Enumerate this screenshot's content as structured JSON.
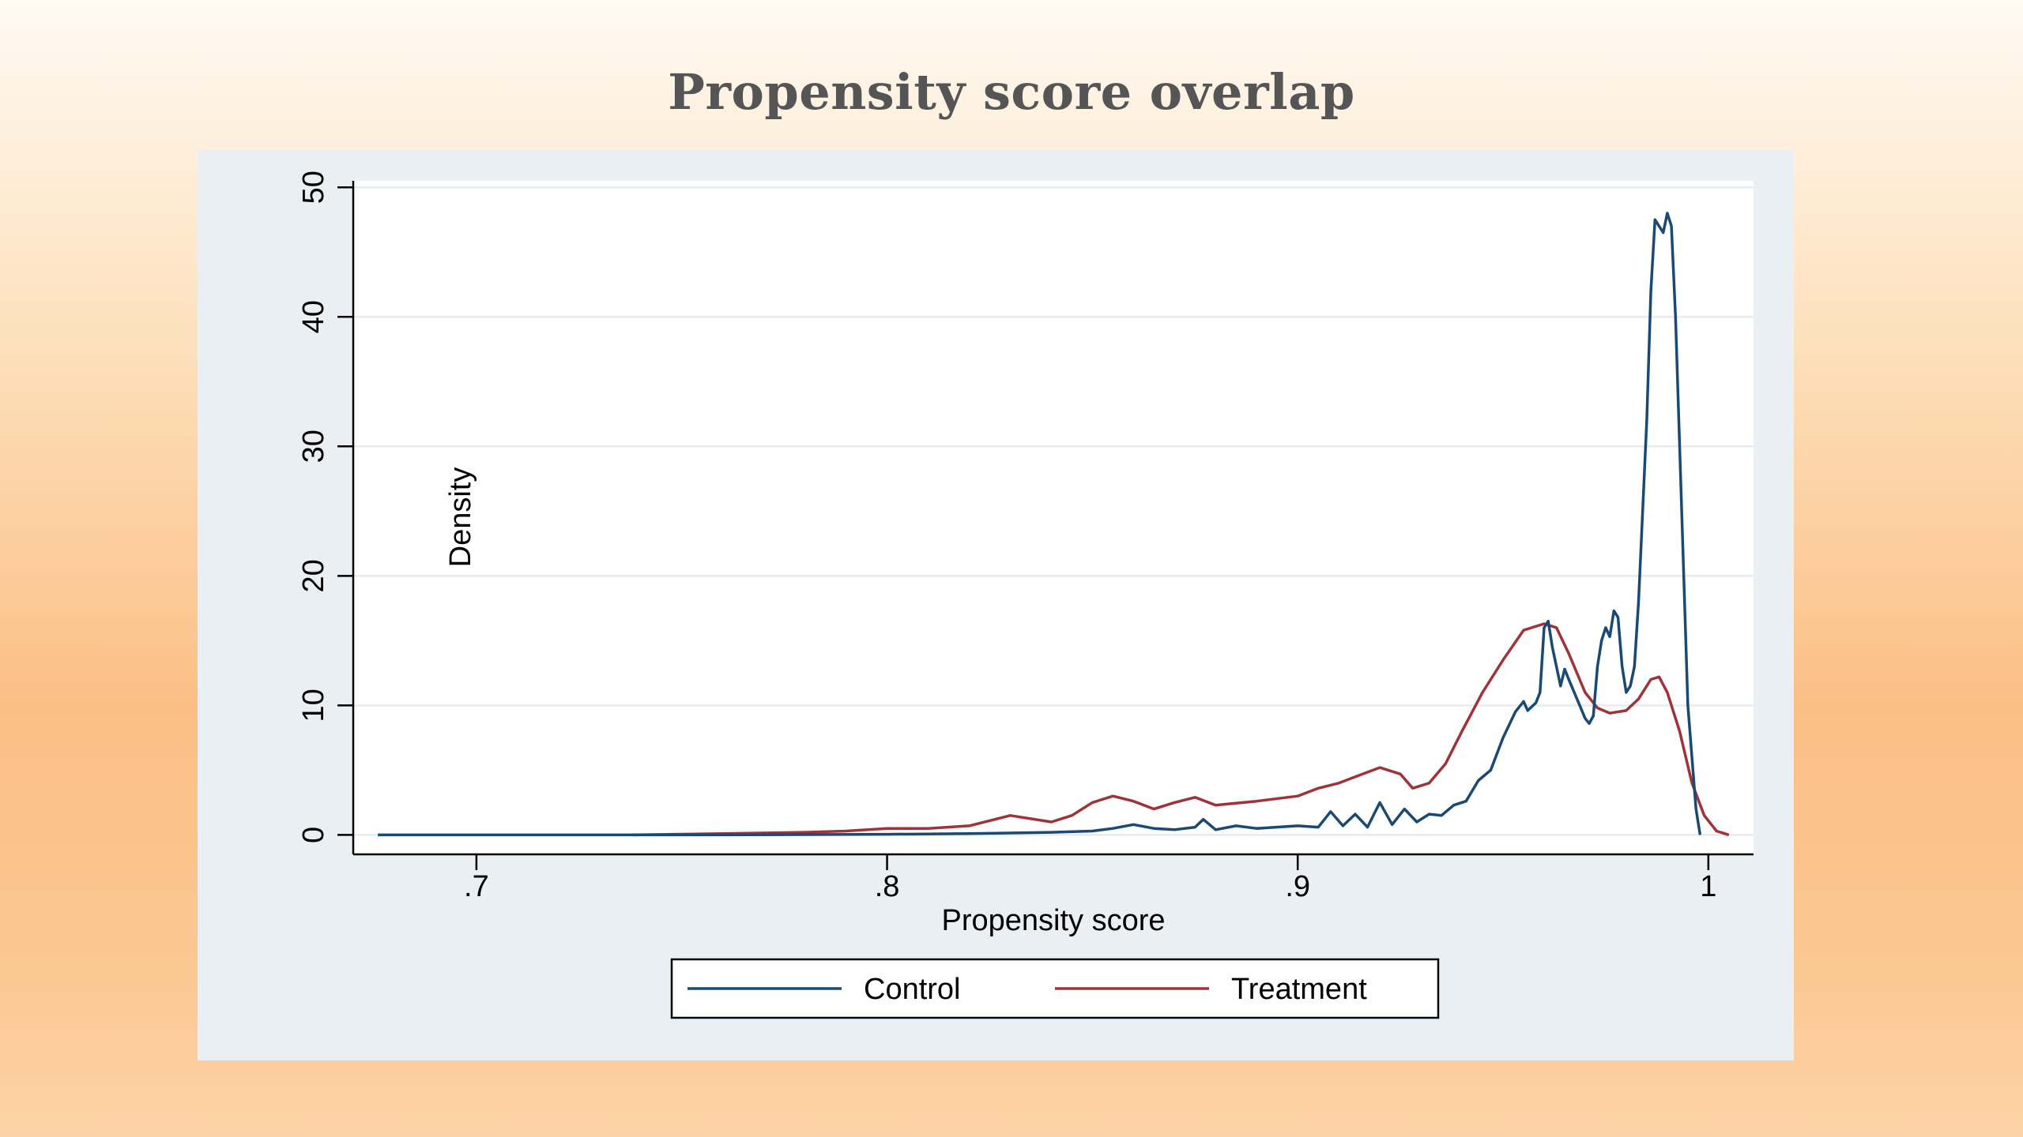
{
  "slide": {
    "title": "Propensity score overlap"
  },
  "chart_data": {
    "type": "line",
    "xlabel": "Propensity score",
    "ylabel": "Density",
    "xlim": [
      0.67,
      1.011
    ],
    "ylim": [
      -1.5,
      50.5
    ],
    "x_ticks": [
      0.7,
      0.8,
      0.9,
      1.0
    ],
    "x_tick_labels": [
      ".7",
      ".8",
      ".9",
      "1"
    ],
    "y_ticks": [
      0,
      10,
      20,
      30,
      40,
      50
    ],
    "y_tick_labels": [
      "0",
      "10",
      "20",
      "30",
      "40",
      "50"
    ],
    "grid": "horizontal",
    "legend_position": "bottom",
    "series": [
      {
        "name": "Control",
        "color": "#1a4a73",
        "points": [
          [
            0.676,
            0
          ],
          [
            0.72,
            0
          ],
          [
            0.76,
            0
          ],
          [
            0.8,
            0.05
          ],
          [
            0.82,
            0.1
          ],
          [
            0.84,
            0.2
          ],
          [
            0.85,
            0.3
          ],
          [
            0.855,
            0.5
          ],
          [
            0.86,
            0.8
          ],
          [
            0.865,
            0.5
          ],
          [
            0.87,
            0.4
          ],
          [
            0.875,
            0.6
          ],
          [
            0.877,
            1.2
          ],
          [
            0.88,
            0.4
          ],
          [
            0.885,
            0.7
          ],
          [
            0.89,
            0.5
          ],
          [
            0.9,
            0.7
          ],
          [
            0.905,
            0.6
          ],
          [
            0.908,
            1.8
          ],
          [
            0.911,
            0.7
          ],
          [
            0.914,
            1.6
          ],
          [
            0.917,
            0.6
          ],
          [
            0.92,
            2.5
          ],
          [
            0.923,
            0.8
          ],
          [
            0.926,
            2.0
          ],
          [
            0.929,
            1.0
          ],
          [
            0.932,
            1.6
          ],
          [
            0.935,
            1.5
          ],
          [
            0.938,
            2.3
          ],
          [
            0.941,
            2.6
          ],
          [
            0.944,
            4.2
          ],
          [
            0.947,
            5.0
          ],
          [
            0.95,
            7.5
          ],
          [
            0.953,
            9.5
          ],
          [
            0.955,
            10.3
          ],
          [
            0.956,
            9.6
          ],
          [
            0.958,
            10.2
          ],
          [
            0.959,
            11.0
          ],
          [
            0.96,
            16.0
          ],
          [
            0.961,
            16.5
          ],
          [
            0.962,
            14.5
          ],
          [
            0.963,
            13.0
          ],
          [
            0.964,
            11.5
          ],
          [
            0.965,
            12.8
          ],
          [
            0.966,
            12.0
          ],
          [
            0.968,
            10.5
          ],
          [
            0.97,
            9.0
          ],
          [
            0.971,
            8.6
          ],
          [
            0.972,
            9.2
          ],
          [
            0.973,
            13.0
          ],
          [
            0.974,
            15.0
          ],
          [
            0.975,
            16.0
          ],
          [
            0.976,
            15.3
          ],
          [
            0.977,
            17.3
          ],
          [
            0.978,
            16.8
          ],
          [
            0.979,
            13.0
          ],
          [
            0.98,
            11.0
          ],
          [
            0.981,
            11.5
          ],
          [
            0.982,
            13.0
          ],
          [
            0.983,
            18.0
          ],
          [
            0.985,
            32.0
          ],
          [
            0.986,
            42.0
          ],
          [
            0.987,
            47.5
          ],
          [
            0.988,
            47.0
          ],
          [
            0.989,
            46.5
          ],
          [
            0.99,
            48.0
          ],
          [
            0.991,
            47.0
          ],
          [
            0.992,
            40.0
          ],
          [
            0.993,
            30.0
          ],
          [
            0.994,
            20.0
          ],
          [
            0.995,
            10.0
          ],
          [
            0.997,
            2.0
          ],
          [
            0.998,
            0
          ]
        ]
      },
      {
        "name": "Treatment",
        "color": "#9e3339",
        "points": [
          [
            0.738,
            0
          ],
          [
            0.76,
            0.1
          ],
          [
            0.78,
            0.2
          ],
          [
            0.79,
            0.3
          ],
          [
            0.8,
            0.5
          ],
          [
            0.81,
            0.5
          ],
          [
            0.82,
            0.7
          ],
          [
            0.83,
            1.5
          ],
          [
            0.84,
            1.0
          ],
          [
            0.845,
            1.5
          ],
          [
            0.85,
            2.5
          ],
          [
            0.855,
            3.0
          ],
          [
            0.86,
            2.6
          ],
          [
            0.865,
            2.0
          ],
          [
            0.87,
            2.5
          ],
          [
            0.875,
            2.9
          ],
          [
            0.88,
            2.3
          ],
          [
            0.89,
            2.6
          ],
          [
            0.9,
            3.0
          ],
          [
            0.905,
            3.6
          ],
          [
            0.91,
            4.0
          ],
          [
            0.915,
            4.6
          ],
          [
            0.92,
            5.2
          ],
          [
            0.925,
            4.7
          ],
          [
            0.928,
            3.6
          ],
          [
            0.932,
            4.0
          ],
          [
            0.936,
            5.5
          ],
          [
            0.94,
            8.0
          ],
          [
            0.945,
            11.0
          ],
          [
            0.95,
            13.5
          ],
          [
            0.955,
            15.8
          ],
          [
            0.96,
            16.3
          ],
          [
            0.963,
            16.0
          ],
          [
            0.966,
            14.0
          ],
          [
            0.97,
            11.0
          ],
          [
            0.973,
            9.8
          ],
          [
            0.976,
            9.4
          ],
          [
            0.98,
            9.6
          ],
          [
            0.983,
            10.5
          ],
          [
            0.986,
            12.0
          ],
          [
            0.988,
            12.2
          ],
          [
            0.99,
            11.0
          ],
          [
            0.993,
            8.0
          ],
          [
            0.996,
            4.0
          ],
          [
            0.999,
            1.5
          ],
          [
            1.002,
            0.3
          ],
          [
            1.005,
            0
          ]
        ]
      }
    ]
  }
}
